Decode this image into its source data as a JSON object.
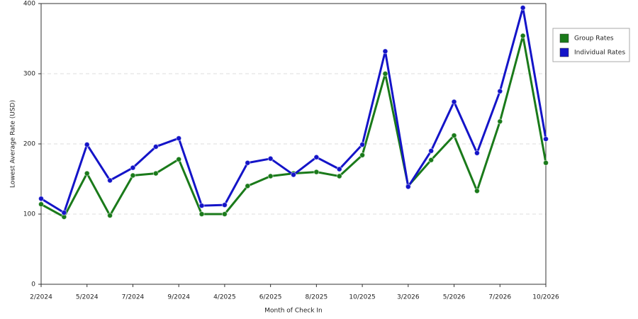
{
  "chart_data": {
    "type": "line",
    "x_label": "Month of Check In",
    "y_label": "Lowest Average Rate (USD)",
    "categories": [
      "2/2024",
      null,
      "5/2024",
      null,
      "7/2024",
      null,
      "9/2024",
      null,
      "4/2025",
      null,
      "6/2025",
      null,
      "8/2025",
      null,
      "10/2025",
      null,
      "3/2026",
      null,
      "5/2026",
      null,
      "7/2026",
      null,
      "10/2026"
    ],
    "series": [
      {
        "name": "Group Rates",
        "color": "#1a7a1a",
        "values": [
          114,
          96,
          158,
          98,
          155,
          158,
          178,
          100,
          100,
          140,
          154,
          158,
          160,
          154,
          184,
          300,
          140,
          177,
          212,
          133,
          232,
          354,
          173
        ]
      },
      {
        "name": "Individual Rates",
        "color": "#1414c8",
        "values": [
          122,
          102,
          199,
          148,
          166,
          196,
          208,
          112,
          113,
          173,
          179,
          156,
          181,
          164,
          199,
          332,
          139,
          190,
          260,
          187,
          275,
          394,
          207
        ]
      }
    ],
    "ylim": [
      0,
      400
    ],
    "yticks": [
      0,
      100,
      200,
      300,
      400
    ],
    "grid": true
  }
}
